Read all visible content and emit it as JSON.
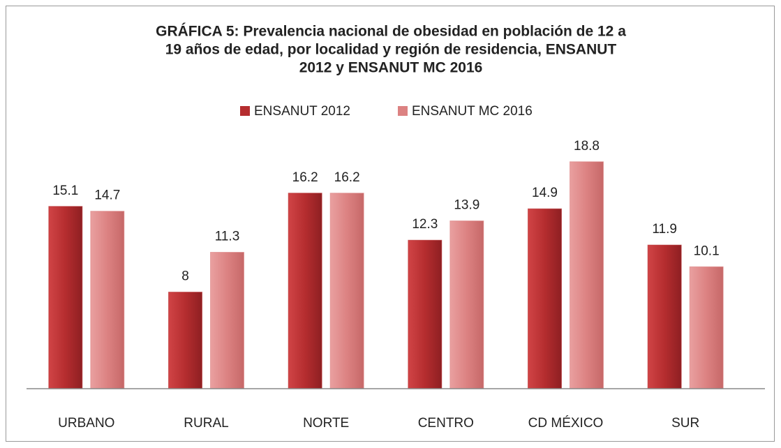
{
  "chart_data": {
    "type": "bar",
    "title": [
      "GRÁFICA 5: Prevalencia nacional de obesidad en población de 12 a",
      "19 años de edad, por localidad y región de residencia, ENSANUT",
      "2012 y ENSANUT  MC 2016"
    ],
    "categories": [
      "URBANO",
      "RURAL",
      "NORTE",
      "CENTRO",
      "CD MÉXICO",
      "SUR"
    ],
    "series": [
      {
        "name": "ENSANUT 2012",
        "color": "#b52d2f",
        "values": [
          15.1,
          8,
          16.2,
          12.3,
          14.9,
          11.9
        ]
      },
      {
        "name": "ENSANUT MC 2016",
        "color": "#dc8282",
        "values": [
          14.7,
          11.3,
          16.2,
          13.9,
          18.8,
          10.1
        ]
      }
    ],
    "ylim": [
      0,
      20
    ],
    "legend": "top"
  }
}
